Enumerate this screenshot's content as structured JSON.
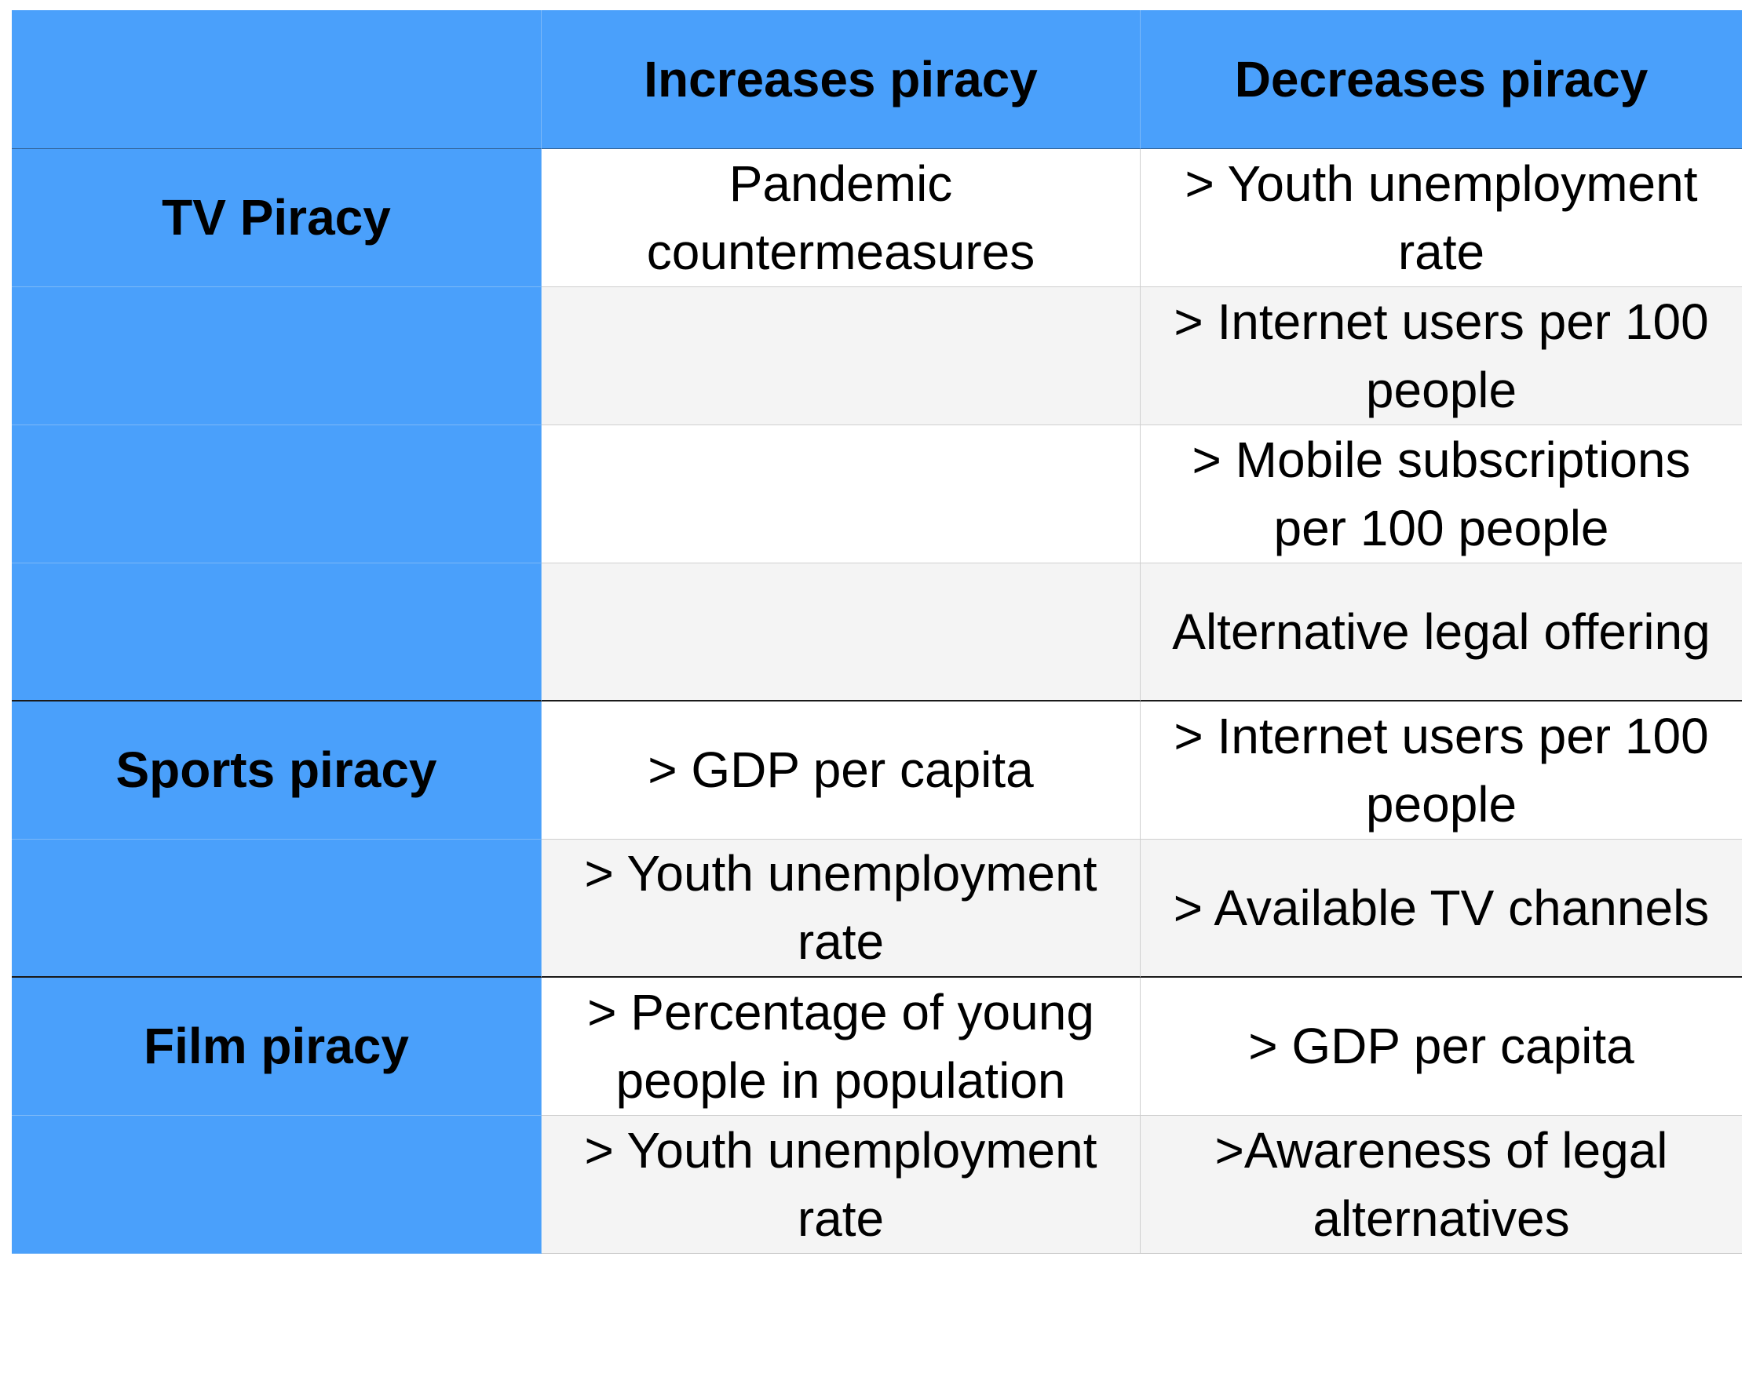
{
  "header": {
    "corner": "",
    "increases": "Increases piracy",
    "decreases": "Decreases piracy"
  },
  "rows": [
    {
      "group": "TV Piracy",
      "increases": "Pandemic countermeasures",
      "decreases": "> Youth unemployment rate"
    },
    {
      "group": "",
      "increases": "",
      "decreases": "> Internet users per 100 people"
    },
    {
      "group": "",
      "increases": "",
      "decreases": "> Mobile subscriptions per 100 people"
    },
    {
      "group": "",
      "increases": "",
      "decreases": "Alternative legal offering"
    },
    {
      "group": "Sports piracy",
      "increases": "> GDP per capita",
      "decreases": "> Internet users per 100 people"
    },
    {
      "group": "",
      "increases": "> Youth unemployment rate",
      "decreases": "> Available TV channels"
    },
    {
      "group": "Film piracy",
      "increases": "> Percentage of young people in population",
      "decreases": "> GDP per capita"
    },
    {
      "group": "",
      "increases": "> Youth unemployment rate",
      "decreases": ">Awareness of legal alternatives"
    }
  ],
  "colors": {
    "header_blue": "#4aa0fb",
    "row_white": "#ffffff",
    "row_grey": "#f4f4f4"
  }
}
